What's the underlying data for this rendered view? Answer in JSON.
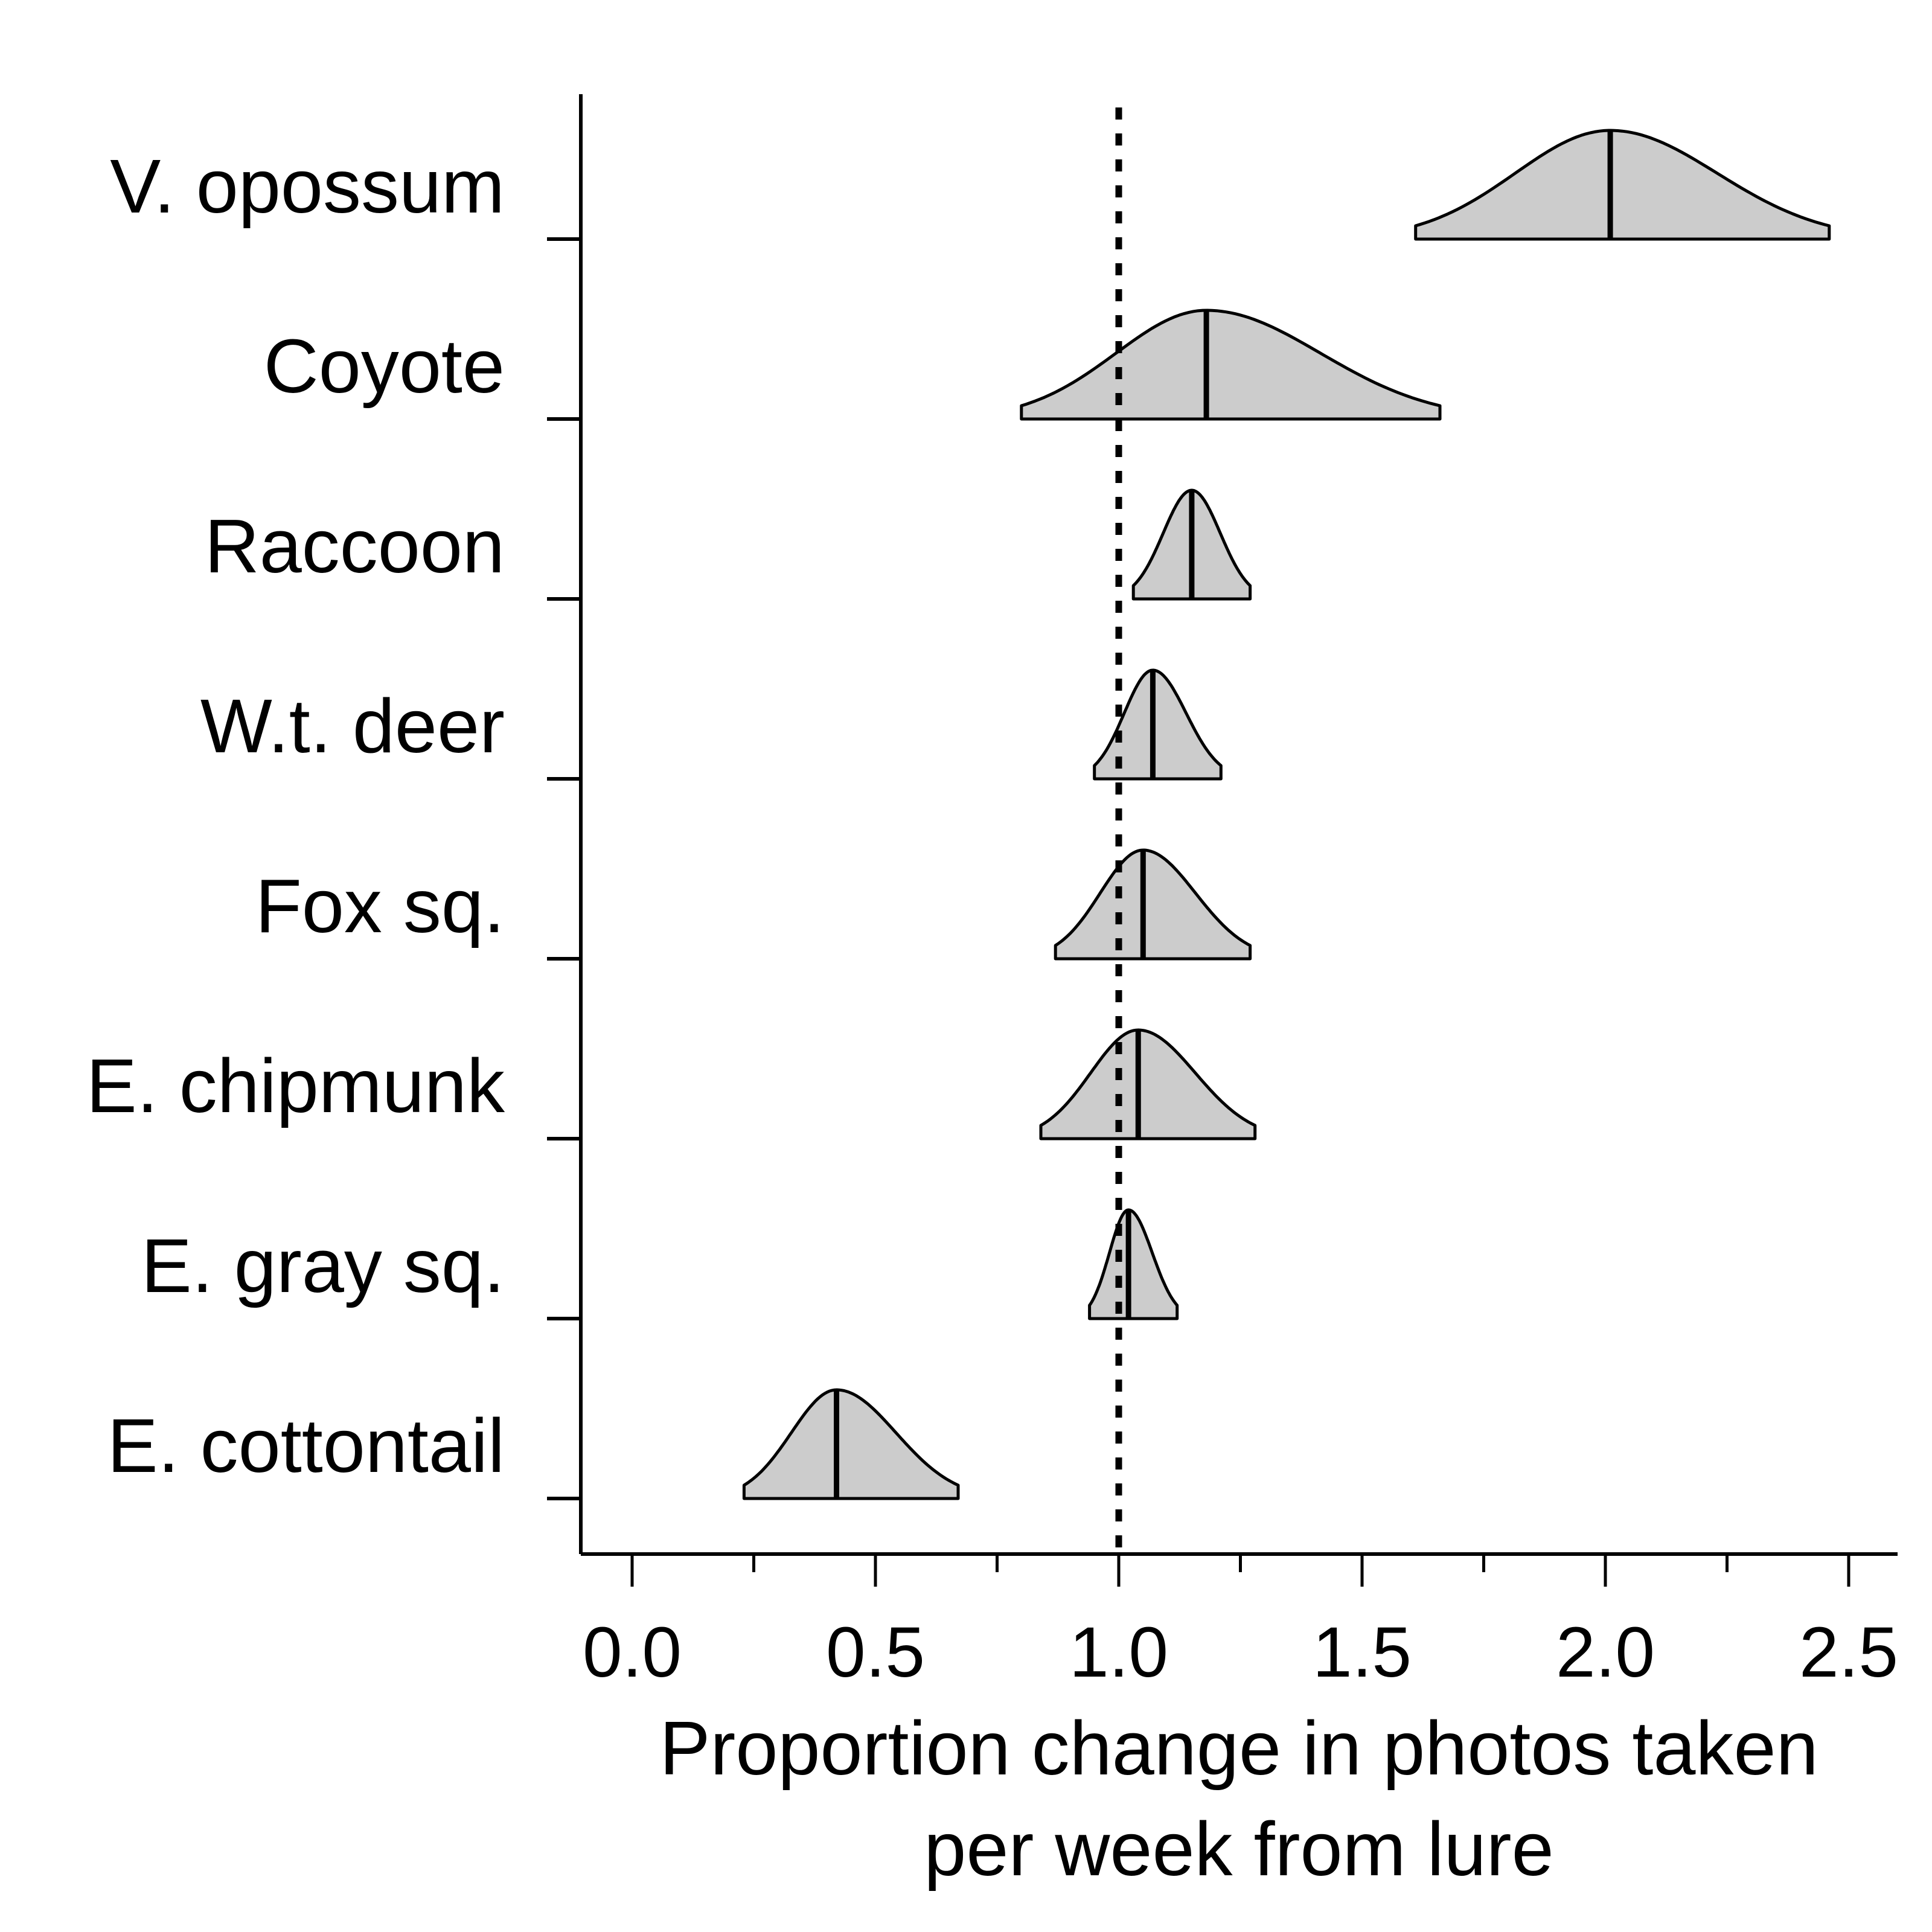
{
  "chart_data": {
    "type": "density ridge",
    "xlabel_lines": [
      "Proportion change in photos taken",
      "per week from lure"
    ],
    "ylabel": "",
    "xlim": [
      -0.1,
      2.6
    ],
    "xticks": [
      0.0,
      0.5,
      1.0,
      1.5,
      2.0,
      2.5
    ],
    "xtick_labels": [
      "0.0",
      "0.5",
      "1.0",
      "1.5",
      "2.0",
      "2.5"
    ],
    "minor_xticks": [
      0.25,
      0.75,
      1.25,
      1.75,
      2.25
    ],
    "reference_line": {
      "x": 1.0,
      "style": "dotted"
    },
    "grid": false,
    "legend": "none",
    "fill_color": "#cccccc",
    "line_color": "#000000",
    "categories": [
      "V. opossum",
      "Coyote",
      "Raccoon",
      "W.t. deer",
      "Fox sq.",
      "E. chipmunk",
      "E. gray sq.",
      "E. cottontail"
    ],
    "series": [
      {
        "species": "V. opossum",
        "median": 2.01,
        "lower": 1.61,
        "upper": 2.46
      },
      {
        "species": "Coyote",
        "median": 1.18,
        "lower": 0.8,
        "upper": 1.66
      },
      {
        "species": "Raccoon",
        "median": 1.15,
        "lower": 1.03,
        "upper": 1.27
      },
      {
        "species": "W.t. deer",
        "median": 1.07,
        "lower": 0.95,
        "upper": 1.21
      },
      {
        "species": "Fox sq.",
        "median": 1.05,
        "lower": 0.87,
        "upper": 1.27
      },
      {
        "species": "E. chipmunk",
        "median": 1.04,
        "lower": 0.84,
        "upper": 1.28
      },
      {
        "species": "E. gray sq.",
        "median": 1.02,
        "lower": 0.94,
        "upper": 1.12
      },
      {
        "species": "E. cottontail",
        "median": 0.42,
        "lower": 0.23,
        "upper": 0.67
      }
    ]
  }
}
